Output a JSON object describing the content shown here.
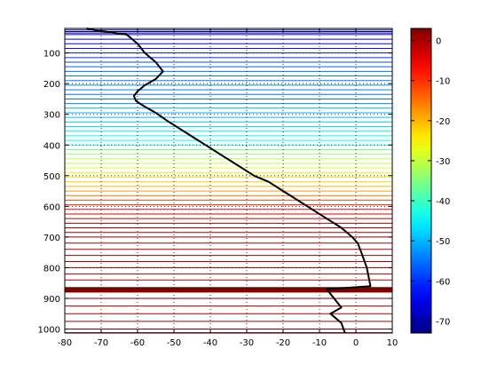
{
  "chart_data": {
    "type": "line",
    "title": "",
    "xlabel": "",
    "ylabel": "",
    "xlim": [
      -80,
      10
    ],
    "ylim": [
      1013,
      20
    ],
    "y_reversed": true,
    "grid": true,
    "grid_style": "dotted",
    "xticks": [
      -80,
      -70,
      -60,
      -50,
      -40,
      -30,
      -20,
      -10,
      0,
      10
    ],
    "yticks": [
      100,
      200,
      300,
      400,
      500,
      600,
      700,
      800,
      900,
      1000
    ],
    "profile": {
      "x": [
        -74,
        -72,
        -69,
        -66,
        -63,
        -62.5,
        -60,
        -58,
        -55,
        -53,
        -55,
        -58,
        -60,
        -61,
        -60.5,
        -60,
        -58,
        -55,
        -52,
        -48,
        -44,
        -40,
        -36,
        -32,
        -28,
        -24,
        -20,
        -16,
        -12,
        -8,
        -4,
        -1,
        0.5,
        1.5,
        3,
        4,
        -8,
        -6,
        -4,
        -7,
        -4,
        -3
      ],
      "y": [
        20,
        25,
        30,
        35,
        40,
        45,
        70,
        100,
        130,
        160,
        185,
        205,
        225,
        240,
        255,
        260,
        275,
        295,
        320,
        350,
        380,
        410,
        440,
        470,
        500,
        520,
        550,
        580,
        610,
        640,
        670,
        700,
        720,
        750,
        800,
        860,
        870,
        900,
        930,
        950,
        980,
        1013
      ]
    },
    "levels": [
      {
        "p": 20,
        "v": -73
      },
      {
        "p": 25,
        "v": -72
      },
      {
        "p": 30,
        "v": -71
      },
      {
        "p": 35,
        "v": -70
      },
      {
        "p": 40,
        "v": -69
      },
      {
        "p": 55,
        "v": -64
      },
      {
        "p": 70,
        "v": -63
      },
      {
        "p": 85,
        "v": -62
      },
      {
        "p": 100,
        "v": -61
      },
      {
        "p": 115,
        "v": -60
      },
      {
        "p": 130,
        "v": -58
      },
      {
        "p": 145,
        "v": -56
      },
      {
        "p": 160,
        "v": -55
      },
      {
        "p": 175,
        "v": -54
      },
      {
        "p": 190,
        "v": -54
      },
      {
        "p": 205,
        "v": -53
      },
      {
        "p": 220,
        "v": -54
      },
      {
        "p": 235,
        "v": -55
      },
      {
        "p": 250,
        "v": -55
      },
      {
        "p": 265,
        "v": -53
      },
      {
        "p": 280,
        "v": -51
      },
      {
        "p": 295,
        "v": -50
      },
      {
        "p": 310,
        "v": -49
      },
      {
        "p": 325,
        "v": -48
      },
      {
        "p": 340,
        "v": -47
      },
      {
        "p": 355,
        "v": -46
      },
      {
        "p": 370,
        "v": -45
      },
      {
        "p": 385,
        "v": -44
      },
      {
        "p": 400,
        "v": -42
      },
      {
        "p": 415,
        "v": -36
      },
      {
        "p": 430,
        "v": -33
      },
      {
        "p": 445,
        "v": -31
      },
      {
        "p": 460,
        "v": -30
      },
      {
        "p": 475,
        "v": -28
      },
      {
        "p": 490,
        "v": -26
      },
      {
        "p": 505,
        "v": -24
      },
      {
        "p": 520,
        "v": -22
      },
      {
        "p": 535,
        "v": -20
      },
      {
        "p": 550,
        "v": -18
      },
      {
        "p": 565,
        "v": -15
      },
      {
        "p": 580,
        "v": -12
      },
      {
        "p": 595,
        "v": -8
      },
      {
        "p": 610,
        "v": -6
      },
      {
        "p": 625,
        "v": -4
      },
      {
        "p": 640,
        "v": -2
      },
      {
        "p": 655,
        "v": -1
      },
      {
        "p": 670,
        "v": 0
      },
      {
        "p": 685,
        "v": 0
      },
      {
        "p": 700,
        "v": 0
      },
      {
        "p": 720,
        "v": 0
      },
      {
        "p": 740,
        "v": 0
      },
      {
        "p": 760,
        "v": 0
      },
      {
        "p": 780,
        "v": 0
      },
      {
        "p": 800,
        "v": 0
      },
      {
        "p": 820,
        "v": 0
      },
      {
        "p": 840,
        "v": 0
      },
      {
        "p": 866,
        "v": 3
      },
      {
        "p": 868,
        "v": 3
      },
      {
        "p": 870,
        "v": 3
      },
      {
        "p": 872,
        "v": 3
      },
      {
        "p": 874,
        "v": 3
      },
      {
        "p": 876,
        "v": 3
      },
      {
        "p": 878,
        "v": 3
      },
      {
        "p": 900,
        "v": 1
      },
      {
        "p": 925,
        "v": 1
      },
      {
        "p": 950,
        "v": 0
      },
      {
        "p": 975,
        "v": 0
      },
      {
        "p": 1000,
        "v": 1
      },
      {
        "p": 1012,
        "v": 1
      }
    ],
    "colorbar": {
      "range": [
        -73,
        3
      ],
      "ticks": [
        0,
        -10,
        -20,
        -30,
        -40,
        -50,
        -60,
        -70
      ],
      "colormap": "jet"
    }
  }
}
